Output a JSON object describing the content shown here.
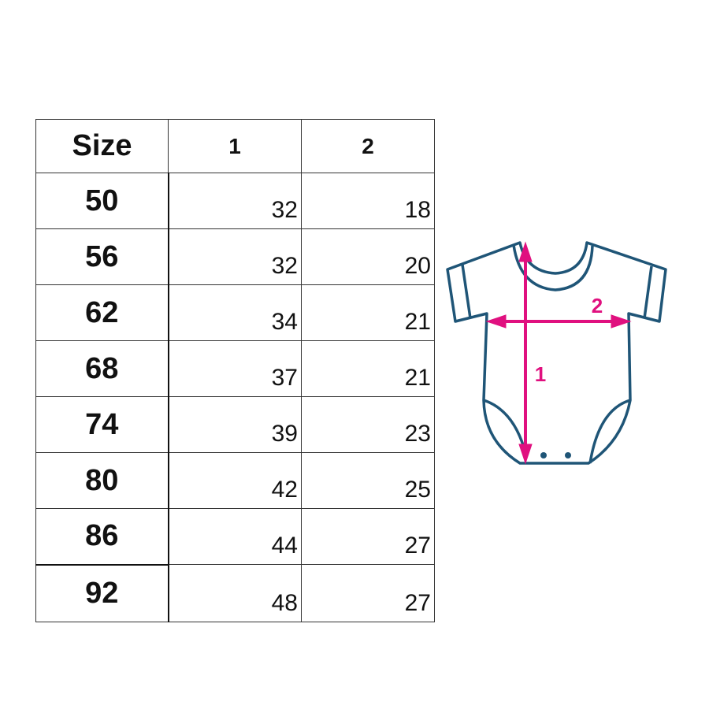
{
  "table": {
    "headers": [
      "Size",
      "1",
      "2"
    ],
    "rows": [
      {
        "size": "50",
        "m1": "32",
        "m2": "18"
      },
      {
        "size": "56",
        "m1": "32",
        "m2": "20"
      },
      {
        "size": "62",
        "m1": "34",
        "m2": "21"
      },
      {
        "size": "68",
        "m1": "37",
        "m2": "21"
      },
      {
        "size": "74",
        "m1": "39",
        "m2": "23"
      },
      {
        "size": "80",
        "m1": "42",
        "m2": "25"
      },
      {
        "size": "86",
        "m1": "44",
        "m2": "27"
      },
      {
        "size": "92",
        "m1": "48",
        "m2": "27"
      }
    ]
  },
  "diagram": {
    "length_label": "1",
    "width_label": "2",
    "outline_color": "#1f5577",
    "arrow_color": "#e0107f"
  }
}
